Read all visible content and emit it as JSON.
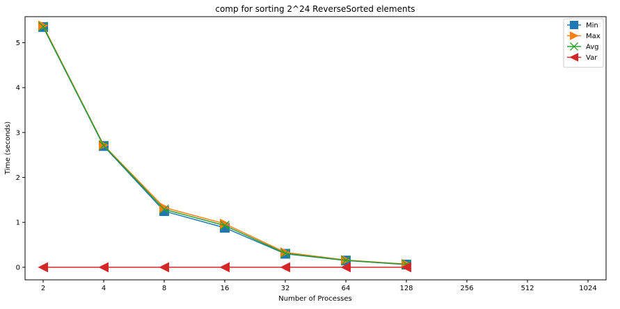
{
  "chart_data": {
    "type": "line",
    "title": "comp for sorting 2^24 ReverseSorted elements",
    "xlabel": "Number of Processes",
    "ylabel": "Time (seconds)",
    "x_scale": "log2",
    "x_ticks": [
      "2",
      "4",
      "8",
      "16",
      "32",
      "64",
      "128",
      "256",
      "512",
      "1024"
    ],
    "y_ticks": [
      "0",
      "1",
      "2",
      "3",
      "4",
      "5"
    ],
    "ylim": [
      -0.28,
      5.58
    ],
    "grid": false,
    "legend_position": "top-right",
    "x": [
      2,
      4,
      8,
      16,
      32,
      64,
      128
    ],
    "series": [
      {
        "name": "Min",
        "color": "#1f77b4",
        "marker": "square",
        "values": [
          5.35,
          2.7,
          1.25,
          0.88,
          0.3,
          0.15,
          0.06
        ]
      },
      {
        "name": "Max",
        "color": "#ff7f0e",
        "marker": "triangle-right",
        "values": [
          5.38,
          2.72,
          1.33,
          0.97,
          0.33,
          0.16,
          0.07
        ]
      },
      {
        "name": "Avg",
        "color": "#2ca02c",
        "marker": "x",
        "values": [
          5.36,
          2.71,
          1.29,
          0.93,
          0.31,
          0.155,
          0.065
        ]
      },
      {
        "name": "Var",
        "color": "#d62728",
        "marker": "triangle-left",
        "values": [
          0.0,
          0.0,
          0.0,
          0.0,
          0.0,
          0.0,
          0.0
        ]
      }
    ]
  }
}
